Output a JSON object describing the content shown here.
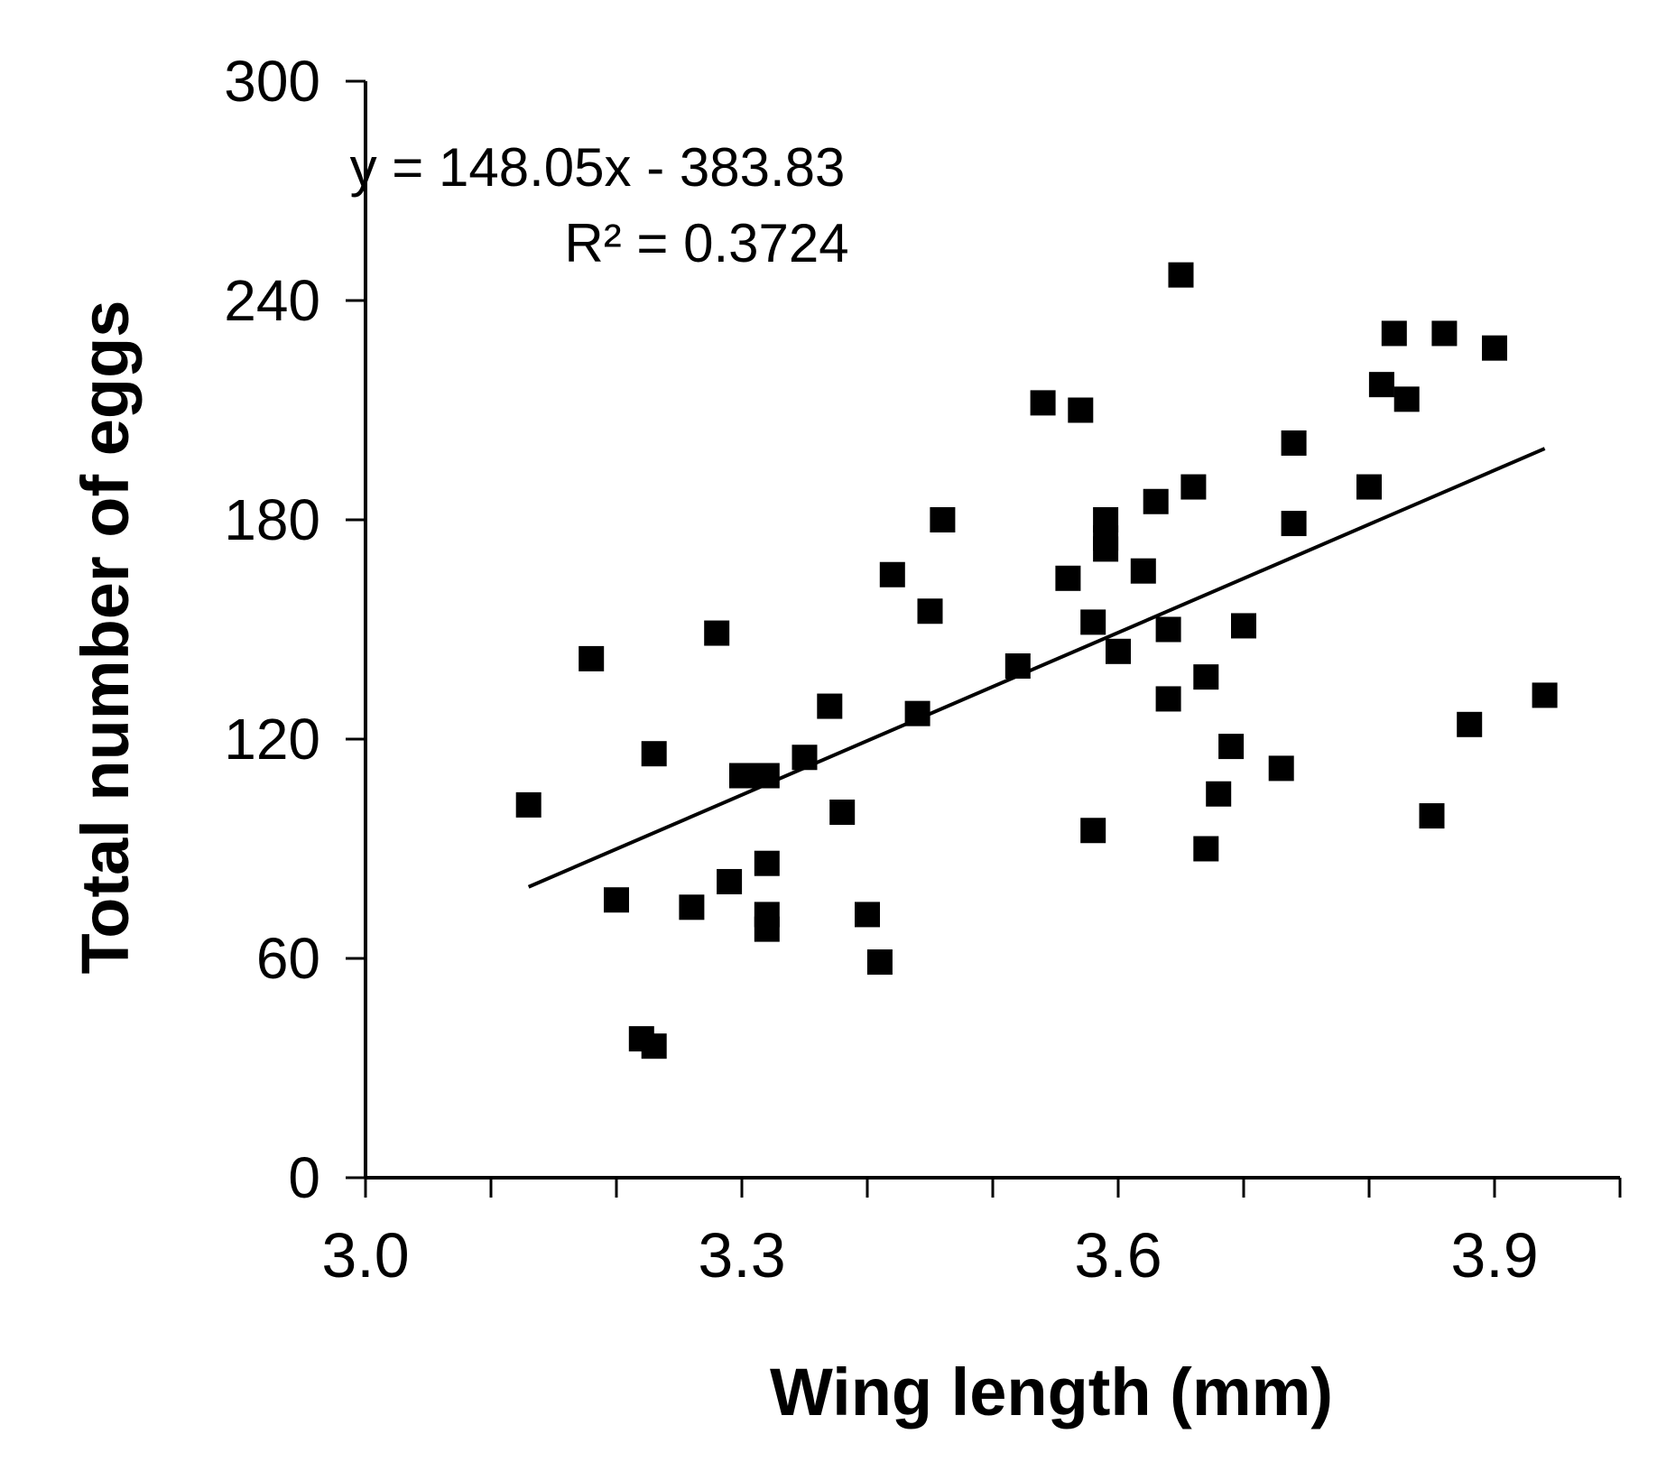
{
  "chart_data": {
    "type": "scatter",
    "xlabel": "Wing length (mm)",
    "ylabel": "Total number of eggs",
    "xlim": [
      3.0,
      4.0
    ],
    "ylim": [
      0,
      300
    ],
    "x_tick_labels": [
      "3.0",
      "3.3",
      "3.6",
      "3.9"
    ],
    "x_tick_values": [
      3.0,
      3.3,
      3.6,
      3.9
    ],
    "x_minor_tick_values": [
      3.1,
      3.2,
      3.4,
      3.5,
      3.7,
      3.8,
      4.0
    ],
    "y_tick_labels": [
      "0",
      "60",
      "120",
      "180",
      "240",
      "300"
    ],
    "y_tick_values": [
      0,
      60,
      120,
      180,
      240,
      300
    ],
    "grid": false,
    "legend": "none",
    "marker": "square",
    "marker_color": "#000000",
    "trendline": {
      "slope": 148.05,
      "intercept": -383.83,
      "x_range": [
        3.13,
        3.94
      ],
      "equation_label": "y = 148.05x - 383.83",
      "r2_label": "R² = 0.3724"
    },
    "points": [
      {
        "x": 3.13,
        "y": 102
      },
      {
        "x": 3.18,
        "y": 142
      },
      {
        "x": 3.2,
        "y": 76
      },
      {
        "x": 3.22,
        "y": 38
      },
      {
        "x": 3.23,
        "y": 36
      },
      {
        "x": 3.23,
        "y": 116
      },
      {
        "x": 3.26,
        "y": 74
      },
      {
        "x": 3.28,
        "y": 149
      },
      {
        "x": 3.29,
        "y": 81
      },
      {
        "x": 3.3,
        "y": 110
      },
      {
        "x": 3.32,
        "y": 110
      },
      {
        "x": 3.32,
        "y": 86
      },
      {
        "x": 3.32,
        "y": 72
      },
      {
        "x": 3.32,
        "y": 68
      },
      {
        "x": 3.35,
        "y": 115
      },
      {
        "x": 3.37,
        "y": 129
      },
      {
        "x": 3.38,
        "y": 100
      },
      {
        "x": 3.4,
        "y": 72
      },
      {
        "x": 3.41,
        "y": 59
      },
      {
        "x": 3.42,
        "y": 165
      },
      {
        "x": 3.44,
        "y": 127
      },
      {
        "x": 3.45,
        "y": 155
      },
      {
        "x": 3.46,
        "y": 180
      },
      {
        "x": 3.52,
        "y": 140
      },
      {
        "x": 3.54,
        "y": 212
      },
      {
        "x": 3.56,
        "y": 164
      },
      {
        "x": 3.57,
        "y": 210
      },
      {
        "x": 3.58,
        "y": 152
      },
      {
        "x": 3.58,
        "y": 95
      },
      {
        "x": 3.59,
        "y": 180
      },
      {
        "x": 3.59,
        "y": 175
      },
      {
        "x": 3.59,
        "y": 172
      },
      {
        "x": 3.6,
        "y": 144
      },
      {
        "x": 3.62,
        "y": 166
      },
      {
        "x": 3.63,
        "y": 185
      },
      {
        "x": 3.64,
        "y": 150
      },
      {
        "x": 3.64,
        "y": 131
      },
      {
        "x": 3.65,
        "y": 247
      },
      {
        "x": 3.66,
        "y": 189
      },
      {
        "x": 3.67,
        "y": 90
      },
      {
        "x": 3.67,
        "y": 137
      },
      {
        "x": 3.68,
        "y": 105
      },
      {
        "x": 3.69,
        "y": 118
      },
      {
        "x": 3.7,
        "y": 151
      },
      {
        "x": 3.73,
        "y": 112
      },
      {
        "x": 3.74,
        "y": 201
      },
      {
        "x": 3.74,
        "y": 179
      },
      {
        "x": 3.8,
        "y": 189
      },
      {
        "x": 3.81,
        "y": 217
      },
      {
        "x": 3.82,
        "y": 231
      },
      {
        "x": 3.83,
        "y": 213
      },
      {
        "x": 3.85,
        "y": 99
      },
      {
        "x": 3.86,
        "y": 231
      },
      {
        "x": 3.88,
        "y": 124
      },
      {
        "x": 3.9,
        "y": 227
      },
      {
        "x": 3.94,
        "y": 132
      }
    ]
  }
}
